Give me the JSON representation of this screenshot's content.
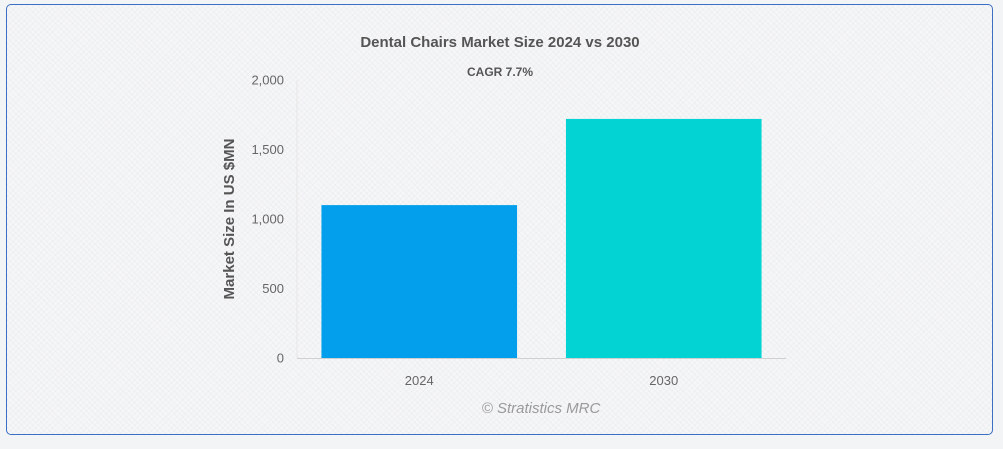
{
  "chart_data": {
    "type": "bar",
    "title": "Dental Chairs Market Size 2024 vs 2030",
    "subtitle": "CAGR 7.7%",
    "categories": [
      "2024",
      "2030"
    ],
    "values": [
      1100,
      1720
    ],
    "colors": [
      "#039fec",
      "#03d3d3"
    ],
    "xlabel": "",
    "ylabel": "Market Size In US $MN",
    "ylim": [
      0,
      2000
    ],
    "yticks": [
      0,
      500,
      1000,
      1500,
      2000
    ],
    "ytick_labels": [
      "0",
      "500",
      "1,000",
      "1,500",
      "2,000"
    ],
    "grid": false,
    "credit": "© Stratistics MRC"
  }
}
